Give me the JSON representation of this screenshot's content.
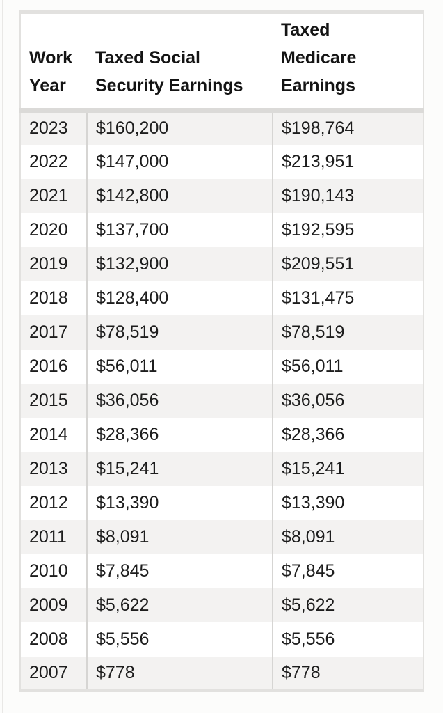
{
  "chart_data": {
    "type": "table",
    "columns": [
      "Work Year",
      "Taxed Social Security Earnings",
      "Taxed Medicare Earnings"
    ],
    "rows": [
      [
        "2023",
        "$160,200",
        "$198,764"
      ],
      [
        "2022",
        "$147,000",
        "$213,951"
      ],
      [
        "2021",
        "$142,800",
        "$190,143"
      ],
      [
        "2020",
        "$137,700",
        "$192,595"
      ],
      [
        "2019",
        "$132,900",
        "$209,551"
      ],
      [
        "2018",
        "$128,400",
        "$131,475"
      ],
      [
        "2017",
        "$78,519",
        "$78,519"
      ],
      [
        "2016",
        "$56,011",
        "$56,011"
      ],
      [
        "2015",
        "$36,056",
        "$36,056"
      ],
      [
        "2014",
        "$28,366",
        "$28,366"
      ],
      [
        "2013",
        "$15,241",
        "$15,241"
      ],
      [
        "2012",
        "$13,390",
        "$13,390"
      ],
      [
        "2011",
        "$8,091",
        "$8,091"
      ],
      [
        "2010",
        "$7,845",
        "$7,845"
      ],
      [
        "2009",
        "$5,622",
        "$5,622"
      ],
      [
        "2008",
        "$5,556",
        "$5,556"
      ],
      [
        "2007",
        "$778",
        "$778"
      ]
    ]
  },
  "colors": {
    "page_bg": "#fcfcfb",
    "edge_line": "#e9e8e6",
    "outer_border": "#e2e1df",
    "header_border": "#dbdad8",
    "divider": "#d6d5d3",
    "row_shaded": "#f3f2f1",
    "text": "#1d1d1d"
  }
}
